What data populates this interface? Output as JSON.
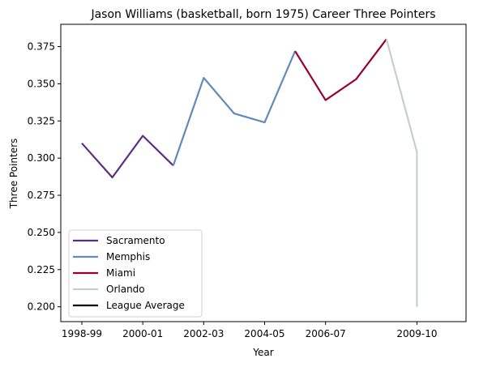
{
  "chart_data": {
    "type": "line",
    "title": "Jason Williams (basketball, born 1975) Career Three Pointers",
    "xlabel": "Year",
    "ylabel": "Three Pointers",
    "x_tick_labels": [
      "1998-99",
      "2000-01",
      "2002-03",
      "2004-05",
      "2006-07",
      "2009-10"
    ],
    "y_tick_labels": [
      "0.200",
      "0.225",
      "0.250",
      "0.275",
      "0.300",
      "0.325",
      "0.350",
      "0.375"
    ],
    "ylim": [
      0.19,
      0.39
    ],
    "grid": false,
    "legend_position": "lower-left",
    "series": [
      {
        "name": "Sacramento",
        "color": "#5a2d81",
        "points": [
          [
            "1998-99",
            0.31
          ],
          [
            "1999-00",
            0.287
          ],
          [
            "2000-01",
            0.315
          ],
          [
            "2001-02",
            0.295
          ]
        ]
      },
      {
        "name": "Memphis",
        "color": "#6189b9",
        "points": [
          [
            "2001-02",
            0.295
          ],
          [
            "2002-03",
            0.354
          ],
          [
            "2003-04",
            0.33
          ],
          [
            "2004-05",
            0.324
          ],
          [
            "2005-06",
            0.372
          ]
        ]
      },
      {
        "name": "Miami",
        "color": "#98002e",
        "points": [
          [
            "2005-06",
            0.372
          ],
          [
            "2006-07",
            0.339
          ],
          [
            "2007-08",
            0.353
          ],
          [
            "2008-09",
            0.38
          ]
        ]
      },
      {
        "name": "Orlando",
        "color": "#c4ced4",
        "points": [
          [
            "2008-09",
            0.38
          ],
          [
            "2009-10",
            0.304
          ],
          [
            "2009-10",
            0.2
          ]
        ]
      },
      {
        "name": "League Average",
        "color": "#000000",
        "points": []
      }
    ]
  }
}
